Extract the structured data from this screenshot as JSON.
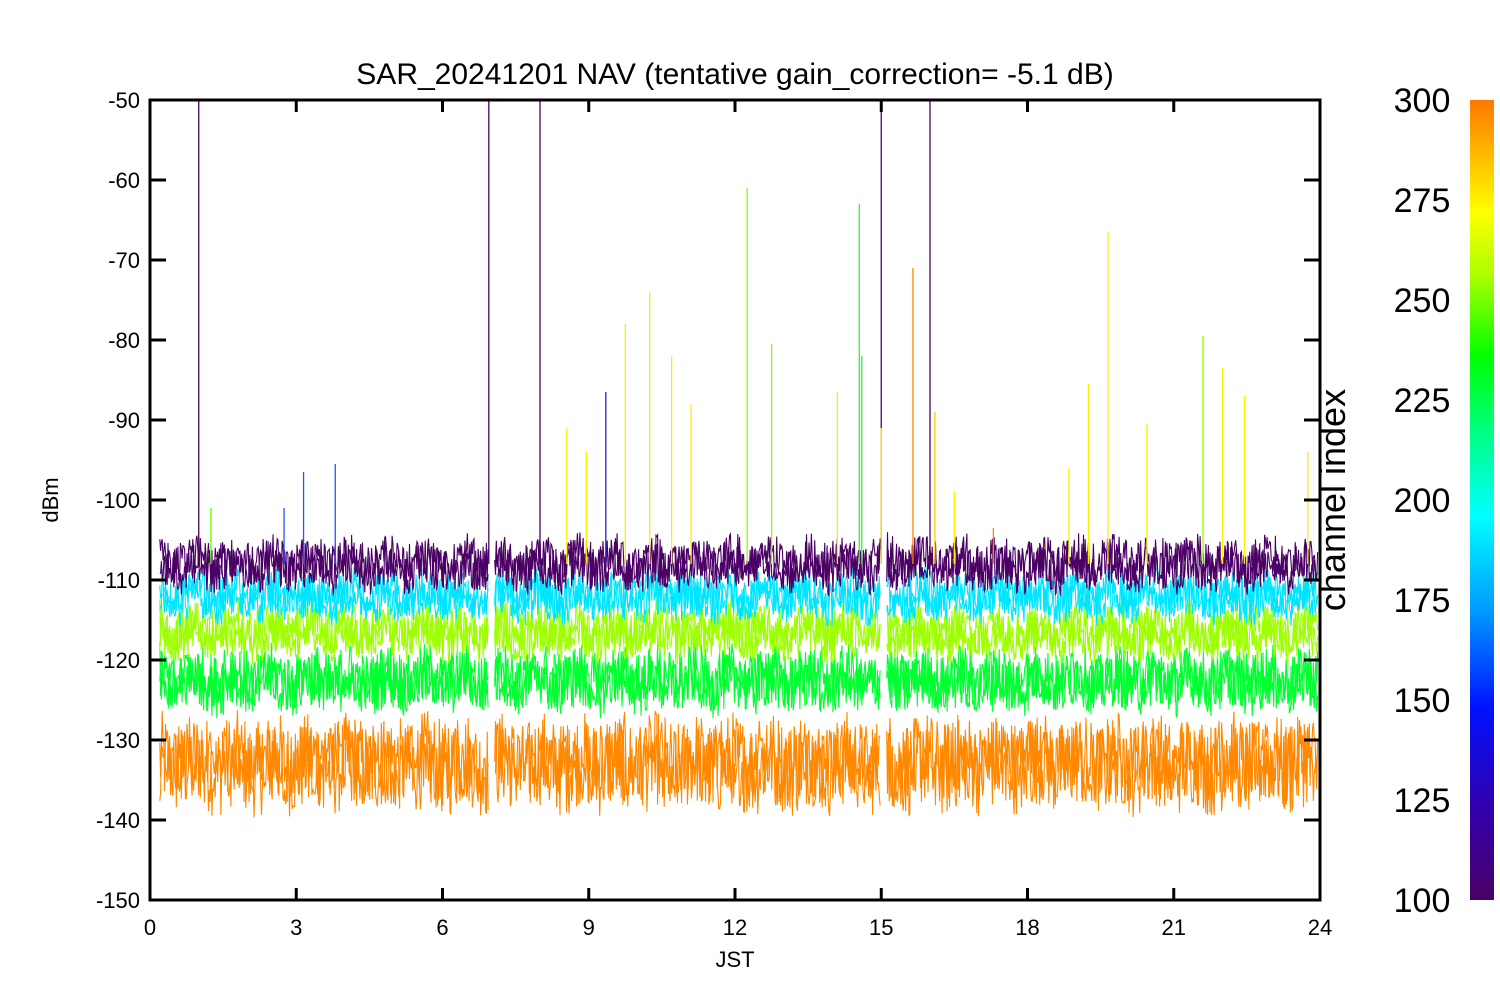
{
  "chart_data": {
    "type": "line",
    "title": "SAR_20241201 NAV (tentative gain_correction= -5.1 dB)",
    "xlabel": "JST",
    "ylabel": "dBm",
    "xlim": [
      0,
      24
    ],
    "ylim": [
      -150,
      -50
    ],
    "x_ticks": [
      "0",
      "3",
      "6",
      "9",
      "12",
      "15",
      "18",
      "21",
      "24"
    ],
    "y_ticks": [
      "-50",
      "-60",
      "-70",
      "-80",
      "-90",
      "-100",
      "-110",
      "-120",
      "-130",
      "-140",
      "-150"
    ],
    "data_gaps_jst": [
      7.0,
      15.05
    ],
    "colorbar": {
      "label": "channel index",
      "range": [
        100,
        300
      ],
      "ticks": [
        "300",
        "275",
        "250",
        "225",
        "200",
        "175",
        "150",
        "125",
        "100"
      ],
      "colormap": [
        "#4b0066",
        "#2a00c0",
        "#0044ff",
        "#00ccff",
        "#00ff99",
        "#00ff00",
        "#bbff00",
        "#ffff00",
        "#ffcc00",
        "#ff8800"
      ]
    },
    "series": [
      {
        "channel": 105,
        "color": "#4b0066",
        "mean": -108,
        "spread": 3.2
      },
      {
        "channel": 170,
        "color": "#00e5ff",
        "mean": -112,
        "spread": 3.0
      },
      {
        "channel": 255,
        "color": "#9dff00",
        "mean": -116.5,
        "spread": 3.4
      },
      {
        "channel": 225,
        "color": "#00ff30",
        "mean": -122.5,
        "spread": 4.0
      },
      {
        "channel": 280,
        "color": "#ff8800",
        "mean": -133,
        "spread": 6.0
      }
    ],
    "spikes": [
      {
        "x": 1.0,
        "y": -50,
        "color": "#4b0066"
      },
      {
        "x": 2.75,
        "y": -101,
        "color": "#2255ff"
      },
      {
        "x": 3.15,
        "y": -96.5,
        "color": "#2255ff"
      },
      {
        "x": 3.8,
        "y": -95.5,
        "color": "#2255ff"
      },
      {
        "x": 1.25,
        "y": -101,
        "color": "#55ff00"
      },
      {
        "x": 6.95,
        "y": -50,
        "color": "#4b0066"
      },
      {
        "x": 8.0,
        "y": -50,
        "color": "#4b0066"
      },
      {
        "x": 8.55,
        "y": -91,
        "color": "#ffee00"
      },
      {
        "x": 8.95,
        "y": -94,
        "color": "#ffee00"
      },
      {
        "x": 9.35,
        "y": -86.5,
        "color": "#2222cc"
      },
      {
        "x": 9.75,
        "y": -78,
        "color": "#ffee00"
      },
      {
        "x": 10.25,
        "y": -74,
        "color": "#ffee00"
      },
      {
        "x": 10.7,
        "y": -82,
        "color": "#ffee00"
      },
      {
        "x": 11.1,
        "y": -88,
        "color": "#ffee00"
      },
      {
        "x": 12.25,
        "y": -61,
        "color": "#88ff00"
      },
      {
        "x": 12.75,
        "y": -80.5,
        "color": "#88ff00"
      },
      {
        "x": 14.1,
        "y": -86.5,
        "color": "#ffee00"
      },
      {
        "x": 14.55,
        "y": -63,
        "color": "#22ff22"
      },
      {
        "x": 14.6,
        "y": -82,
        "color": "#22ff22"
      },
      {
        "x": 15.0,
        "y": -50,
        "color": "#4b0066"
      },
      {
        "x": 15.0,
        "y": -91,
        "color": "#ffee00"
      },
      {
        "x": 15.65,
        "y": -71,
        "color": "#ff8800"
      },
      {
        "x": 16.0,
        "y": -50,
        "color": "#4b0066"
      },
      {
        "x": 16.1,
        "y": -89,
        "color": "#ffcc00"
      },
      {
        "x": 16.5,
        "y": -99,
        "color": "#ffee00"
      },
      {
        "x": 17.3,
        "y": -103.5,
        "color": "#ff8800"
      },
      {
        "x": 18.85,
        "y": -96,
        "color": "#ffee00"
      },
      {
        "x": 19.25,
        "y": -85.5,
        "color": "#ffee00"
      },
      {
        "x": 19.65,
        "y": -66.5,
        "color": "#ffee00"
      },
      {
        "x": 20.45,
        "y": -90.5,
        "color": "#ffee00"
      },
      {
        "x": 21.6,
        "y": -79.5,
        "color": "#88ff00"
      },
      {
        "x": 22.0,
        "y": -83.5,
        "color": "#ffee00"
      },
      {
        "x": 22.45,
        "y": -87,
        "color": "#ffee00"
      },
      {
        "x": 23.75,
        "y": -94,
        "color": "#ffee00"
      }
    ]
  }
}
